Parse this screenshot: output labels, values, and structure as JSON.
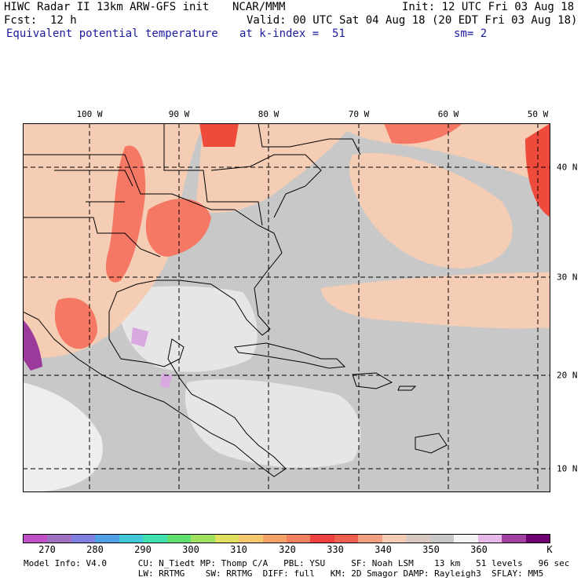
{
  "header": {
    "line1_left": "HIWC Radar II 13km ARW-GFS init",
    "line1_mid": "NCAR/MMM",
    "line1_right": "Init: 12 UTC Fri 03 Aug 18",
    "line2_left": "Fcst:  12 h",
    "line2_right": "Valid: 00 UTC Sat 04 Aug 18 (20 EDT Fri 03 Aug 18)",
    "line3_left": "Equivalent potential temperature",
    "line3_mid": "at k-index =  51",
    "line3_right": "sm= 2"
  },
  "map": {
    "lon_labels": [
      "100 W",
      "90 W",
      "80 W",
      "70 W",
      "60 W",
      "50 W"
    ],
    "lat_labels": [
      "40 N",
      "30 N",
      "20 N",
      "10 N"
    ],
    "background_color": "#c8c8c8",
    "ocean_light_color": "#e6e6e6",
    "warm_color": "#f5cdb4",
    "hot_color": "#f47864",
    "hotter_color": "#ef4b3c",
    "purple_color": "#9b3a9b",
    "gridline_style": "dashed"
  },
  "colorbar": {
    "colors": [
      "#c050c8",
      "#a070c0",
      "#8080e0",
      "#50a0e8",
      "#40c8d8",
      "#40e0b0",
      "#60e070",
      "#a0e060",
      "#e0e060",
      "#f5c870",
      "#f5a068",
      "#f08060",
      "#f04040",
      "#f06050",
      "#f0a080",
      "#f5cdb4",
      "#d8c8c0",
      "#c8c8c8",
      "#f4f4f4",
      "#e8b8e8",
      "#a040a0",
      "#700070"
    ],
    "labels": [
      "270",
      "280",
      "290",
      "300",
      "310",
      "320",
      "330",
      "340",
      "350",
      "360",
      "K"
    ]
  },
  "footer": {
    "line1": "Model Info: V4.0      CU: N_Tiedt MP: Thomp C/A   PBL: YSU     SF: Noah LSM    13 km   51 levels   96 sec",
    "line2": "                      LW: RRTMG    SW: RRTMG  DIFF: full   KM: 2D Smagor DAMP: Rayleigh3  SFLAY: MM5"
  }
}
